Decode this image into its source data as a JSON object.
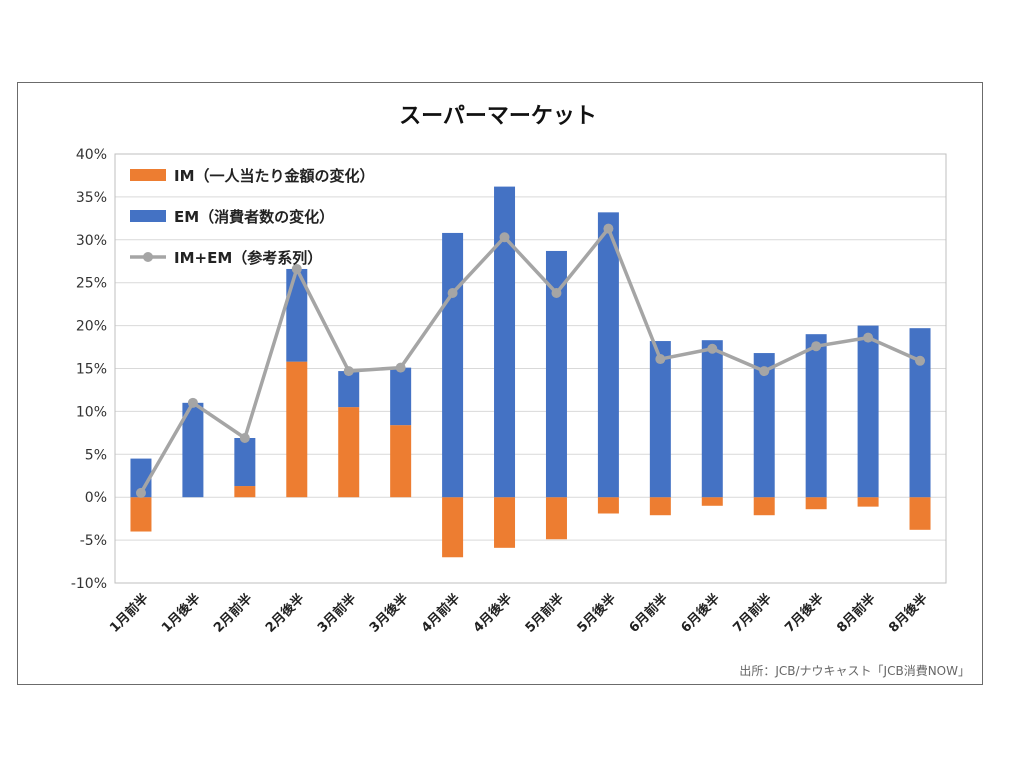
{
  "chart_data": {
    "type": "bar",
    "title": "スーパーマーケット",
    "categories": [
      "1月前半",
      "1月後半",
      "2月前半",
      "2月後半",
      "3月前半",
      "3月後半",
      "4月前半",
      "4月後半",
      "5月前半",
      "5月後半",
      "6月前半",
      "6月後半",
      "7月前半",
      "7月後半",
      "8月前半",
      "8月後半"
    ],
    "series": [
      {
        "name": "IM（一人当たり金額の変化）",
        "kind": "bar",
        "color": "#ed7d31",
        "values": [
          -4.0,
          0.0,
          1.3,
          15.8,
          10.5,
          8.4,
          -7.0,
          -5.9,
          -4.9,
          -1.9,
          -2.1,
          -1.0,
          -2.1,
          -1.4,
          -1.1,
          -3.8
        ]
      },
      {
        "name": "EM（消費者数の変化）",
        "kind": "bar",
        "color": "#4472c4",
        "values": [
          4.5,
          11.0,
          5.6,
          10.8,
          4.2,
          6.7,
          30.8,
          36.2,
          28.7,
          33.2,
          18.2,
          18.3,
          16.8,
          19.0,
          20.0,
          19.7
        ]
      },
      {
        "name": "IM+EM（参考系列）",
        "kind": "line",
        "color": "#a5a5a5",
        "values": [
          0.5,
          11.0,
          6.9,
          26.6,
          14.7,
          15.1,
          23.8,
          30.3,
          23.8,
          31.3,
          16.1,
          17.3,
          14.7,
          17.6,
          18.6,
          15.9
        ]
      }
    ],
    "ylim": [
      -10,
      40
    ],
    "yticks": [
      "-10%",
      "-5%",
      "0%",
      "5%",
      "10%",
      "15%",
      "20%",
      "25%",
      "30%",
      "35%",
      "40%"
    ],
    "grid": true,
    "legend_position": "top-left",
    "source": "出所：JCB/ナウキャスト「JCB消費NOW」"
  }
}
